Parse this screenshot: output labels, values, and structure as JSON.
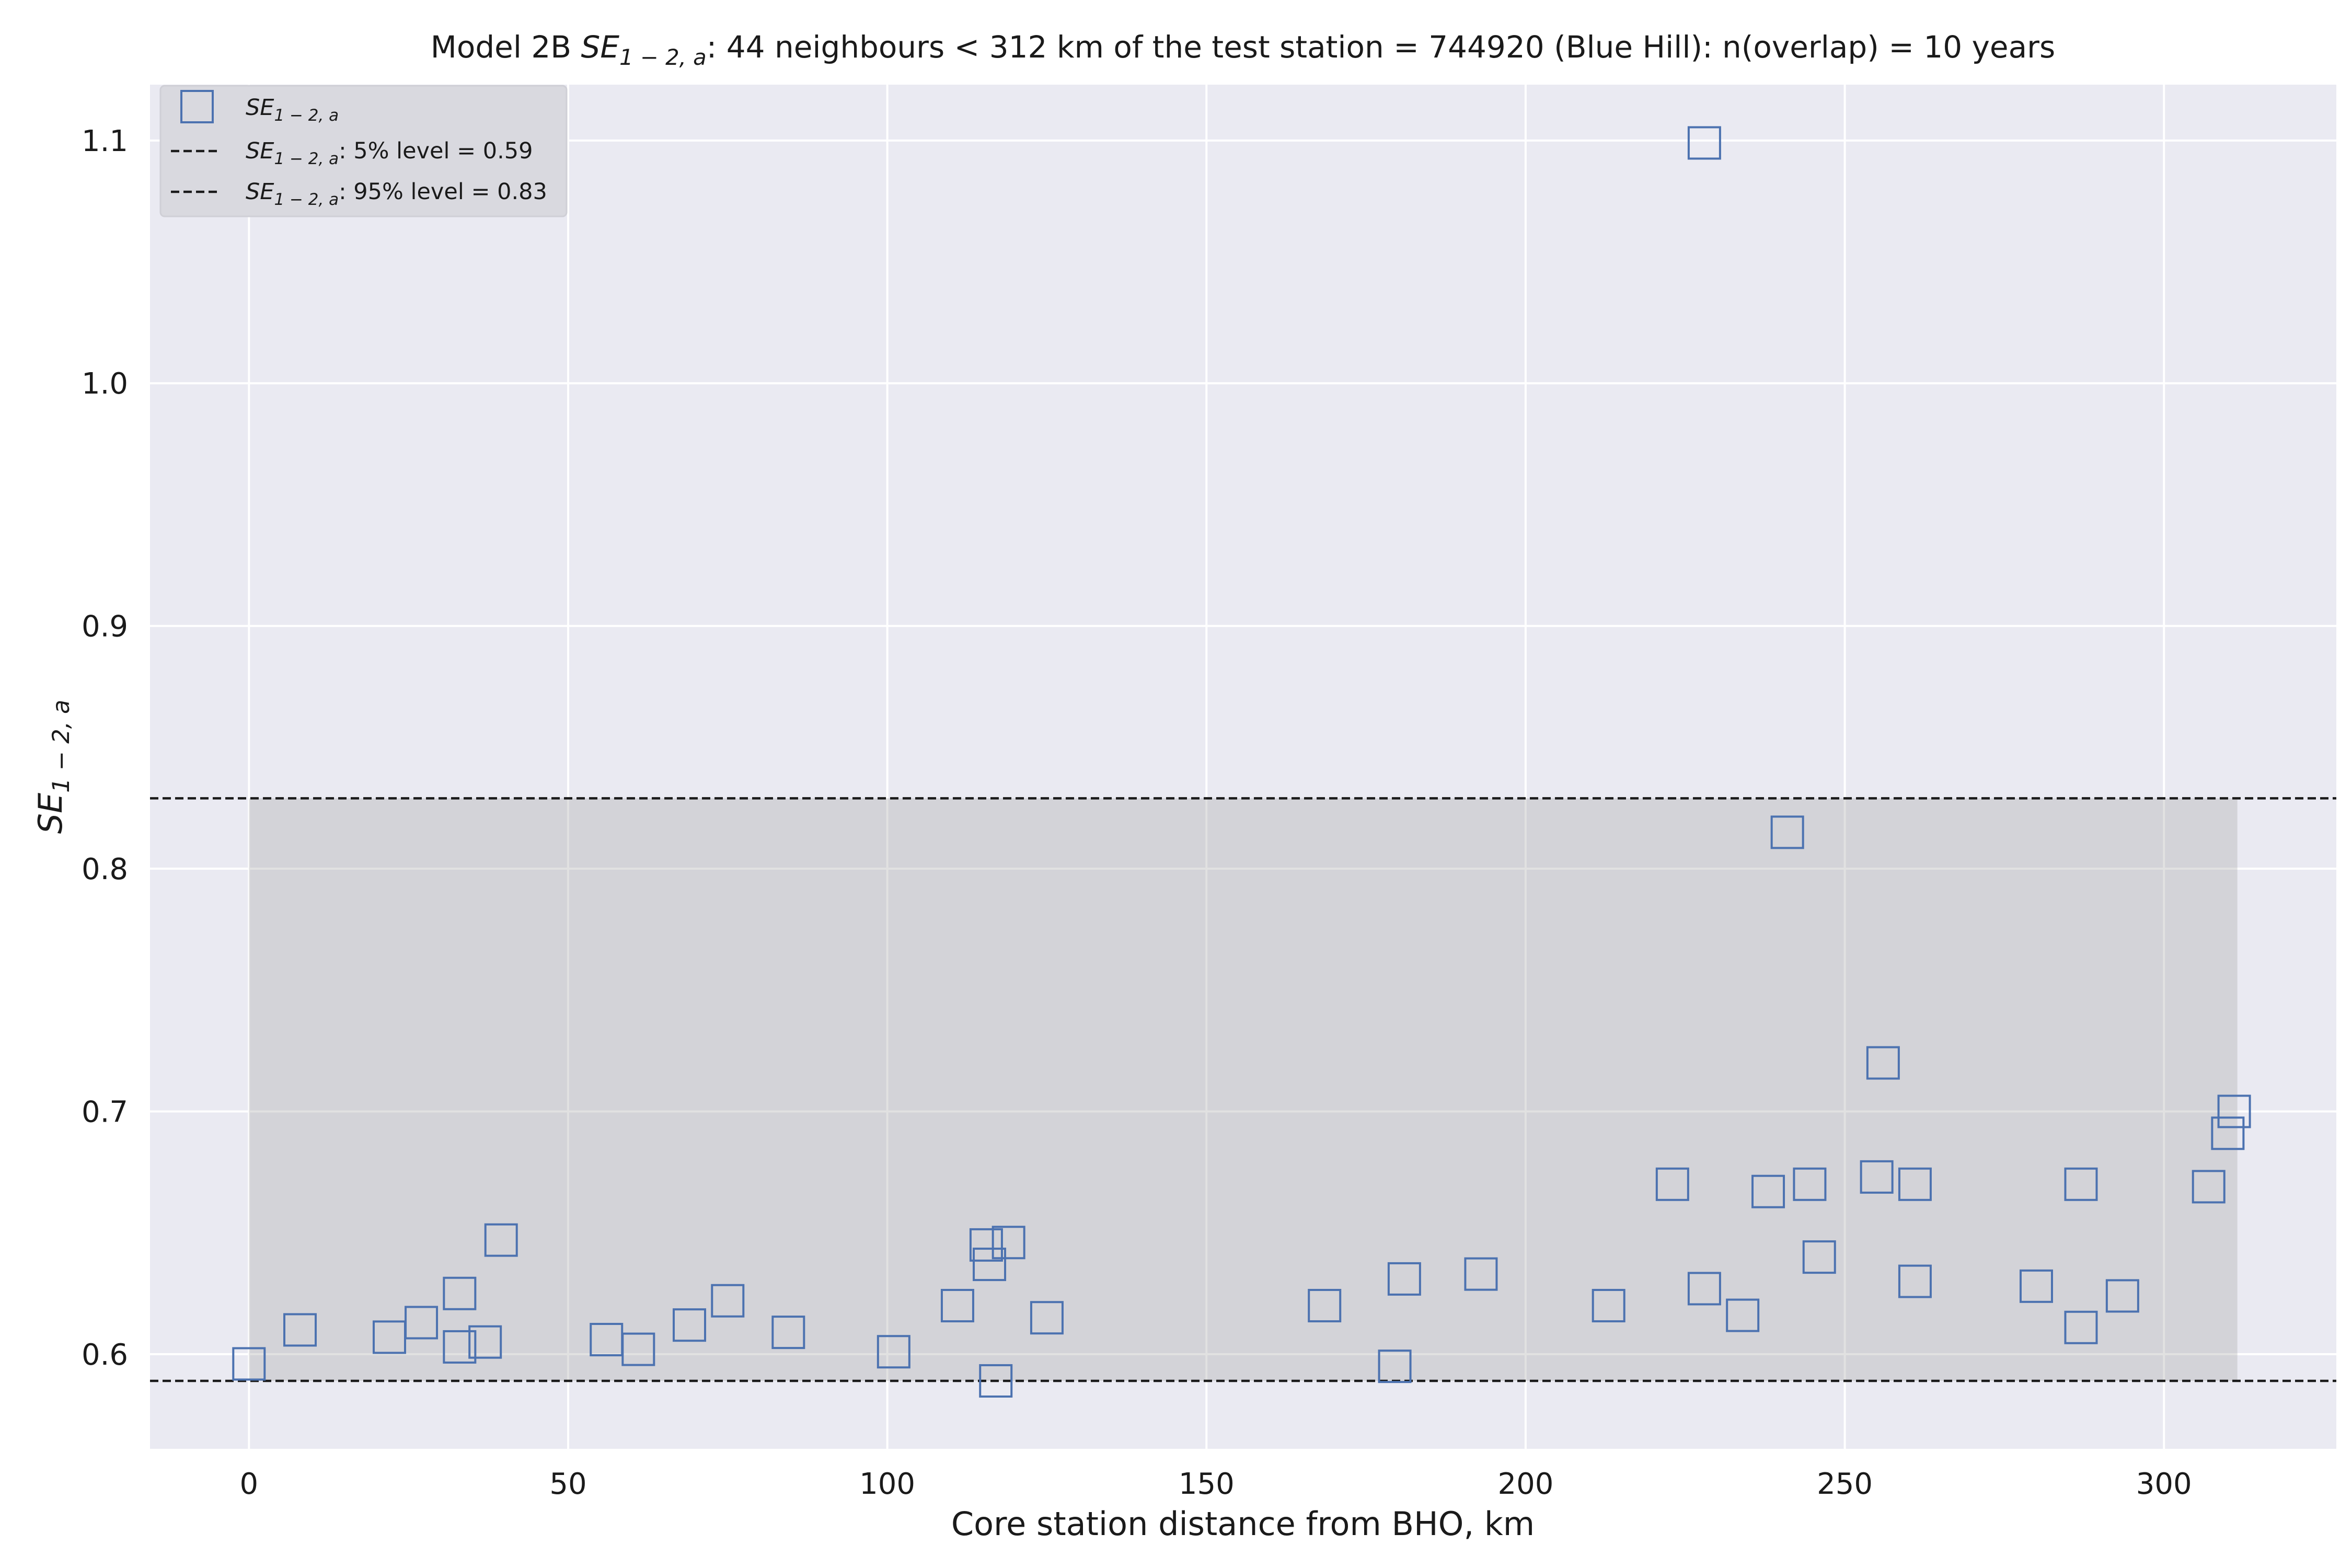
{
  "chart_data": {
    "type": "scatter",
    "title": {
      "prefix": "Model 2B ",
      "symbol": "SE",
      "subscript": "1 − 2, a",
      "suffix": ": 44 neighbours < 312 km of the test station = 744920 (Blue Hill): n(overlap) = 10 years"
    },
    "xlabel": "Core station distance from BHO, km",
    "ylabel": {
      "symbol": "SE",
      "subscript": "1 − 2, a"
    },
    "xlim": [
      -15.5,
      327
    ],
    "ylim": [
      0.561,
      1.123
    ],
    "x_ticks": [
      0,
      50,
      100,
      150,
      200,
      250,
      300
    ],
    "y_ticks": [
      0.6,
      0.7,
      0.8,
      0.9,
      1.0,
      1.1
    ],
    "x_tick_labels": [
      "0",
      "50",
      "100",
      "150",
      "200",
      "250",
      "300"
    ],
    "y_tick_labels": [
      "0.6",
      "0.7",
      "0.8",
      "0.9",
      "1.0",
      "1.1"
    ],
    "grid": true,
    "legend_position": "top-left",
    "colors": {
      "background": "#eaeaf2",
      "grid": "#ffffff",
      "marker": "#4c72b0",
      "band": "#a6a6a6",
      "reference_line": "#1a1a1a",
      "legend_bg": "#d9d9df",
      "legend_border": "#cfcfd6"
    },
    "band": {
      "x_range": [
        0,
        311.5
      ],
      "y_range": [
        0.589,
        0.829
      ]
    },
    "reference_lines": [
      {
        "name": "5% level",
        "value": 0.589,
        "legend_suffix": ": 5% level = 0.59"
      },
      {
        "name": "95% level",
        "value": 0.829,
        "legend_suffix": ": 95% level = 0.83"
      }
    ],
    "series": [
      {
        "name": "SE_{1-2,a}",
        "marker": "square-open",
        "x": [
          0,
          8,
          22,
          27,
          33,
          33,
          37,
          39.5,
          56,
          61,
          69,
          75,
          84.5,
          101,
          111,
          115.5,
          116,
          117,
          119,
          125,
          168.5,
          179.5,
          181,
          193,
          213,
          223,
          228,
          228,
          234,
          238,
          241,
          244.5,
          246,
          255,
          256,
          261,
          261,
          280,
          287,
          287,
          293.5,
          307,
          310,
          311
        ],
        "y": [
          0.596,
          0.61,
          0.607,
          0.613,
          0.625,
          0.603,
          0.605,
          0.647,
          0.606,
          0.602,
          0.612,
          0.622,
          0.609,
          0.601,
          0.62,
          0.645,
          0.637,
          0.589,
          0.646,
          0.615,
          0.62,
          0.595,
          0.631,
          0.633,
          0.62,
          0.67,
          1.099,
          0.627,
          0.616,
          0.667,
          0.815,
          0.67,
          0.64,
          0.673,
          0.72,
          0.67,
          0.63,
          0.628,
          0.67,
          0.611,
          0.624,
          0.669,
          0.691,
          0.7
        ]
      }
    ]
  }
}
